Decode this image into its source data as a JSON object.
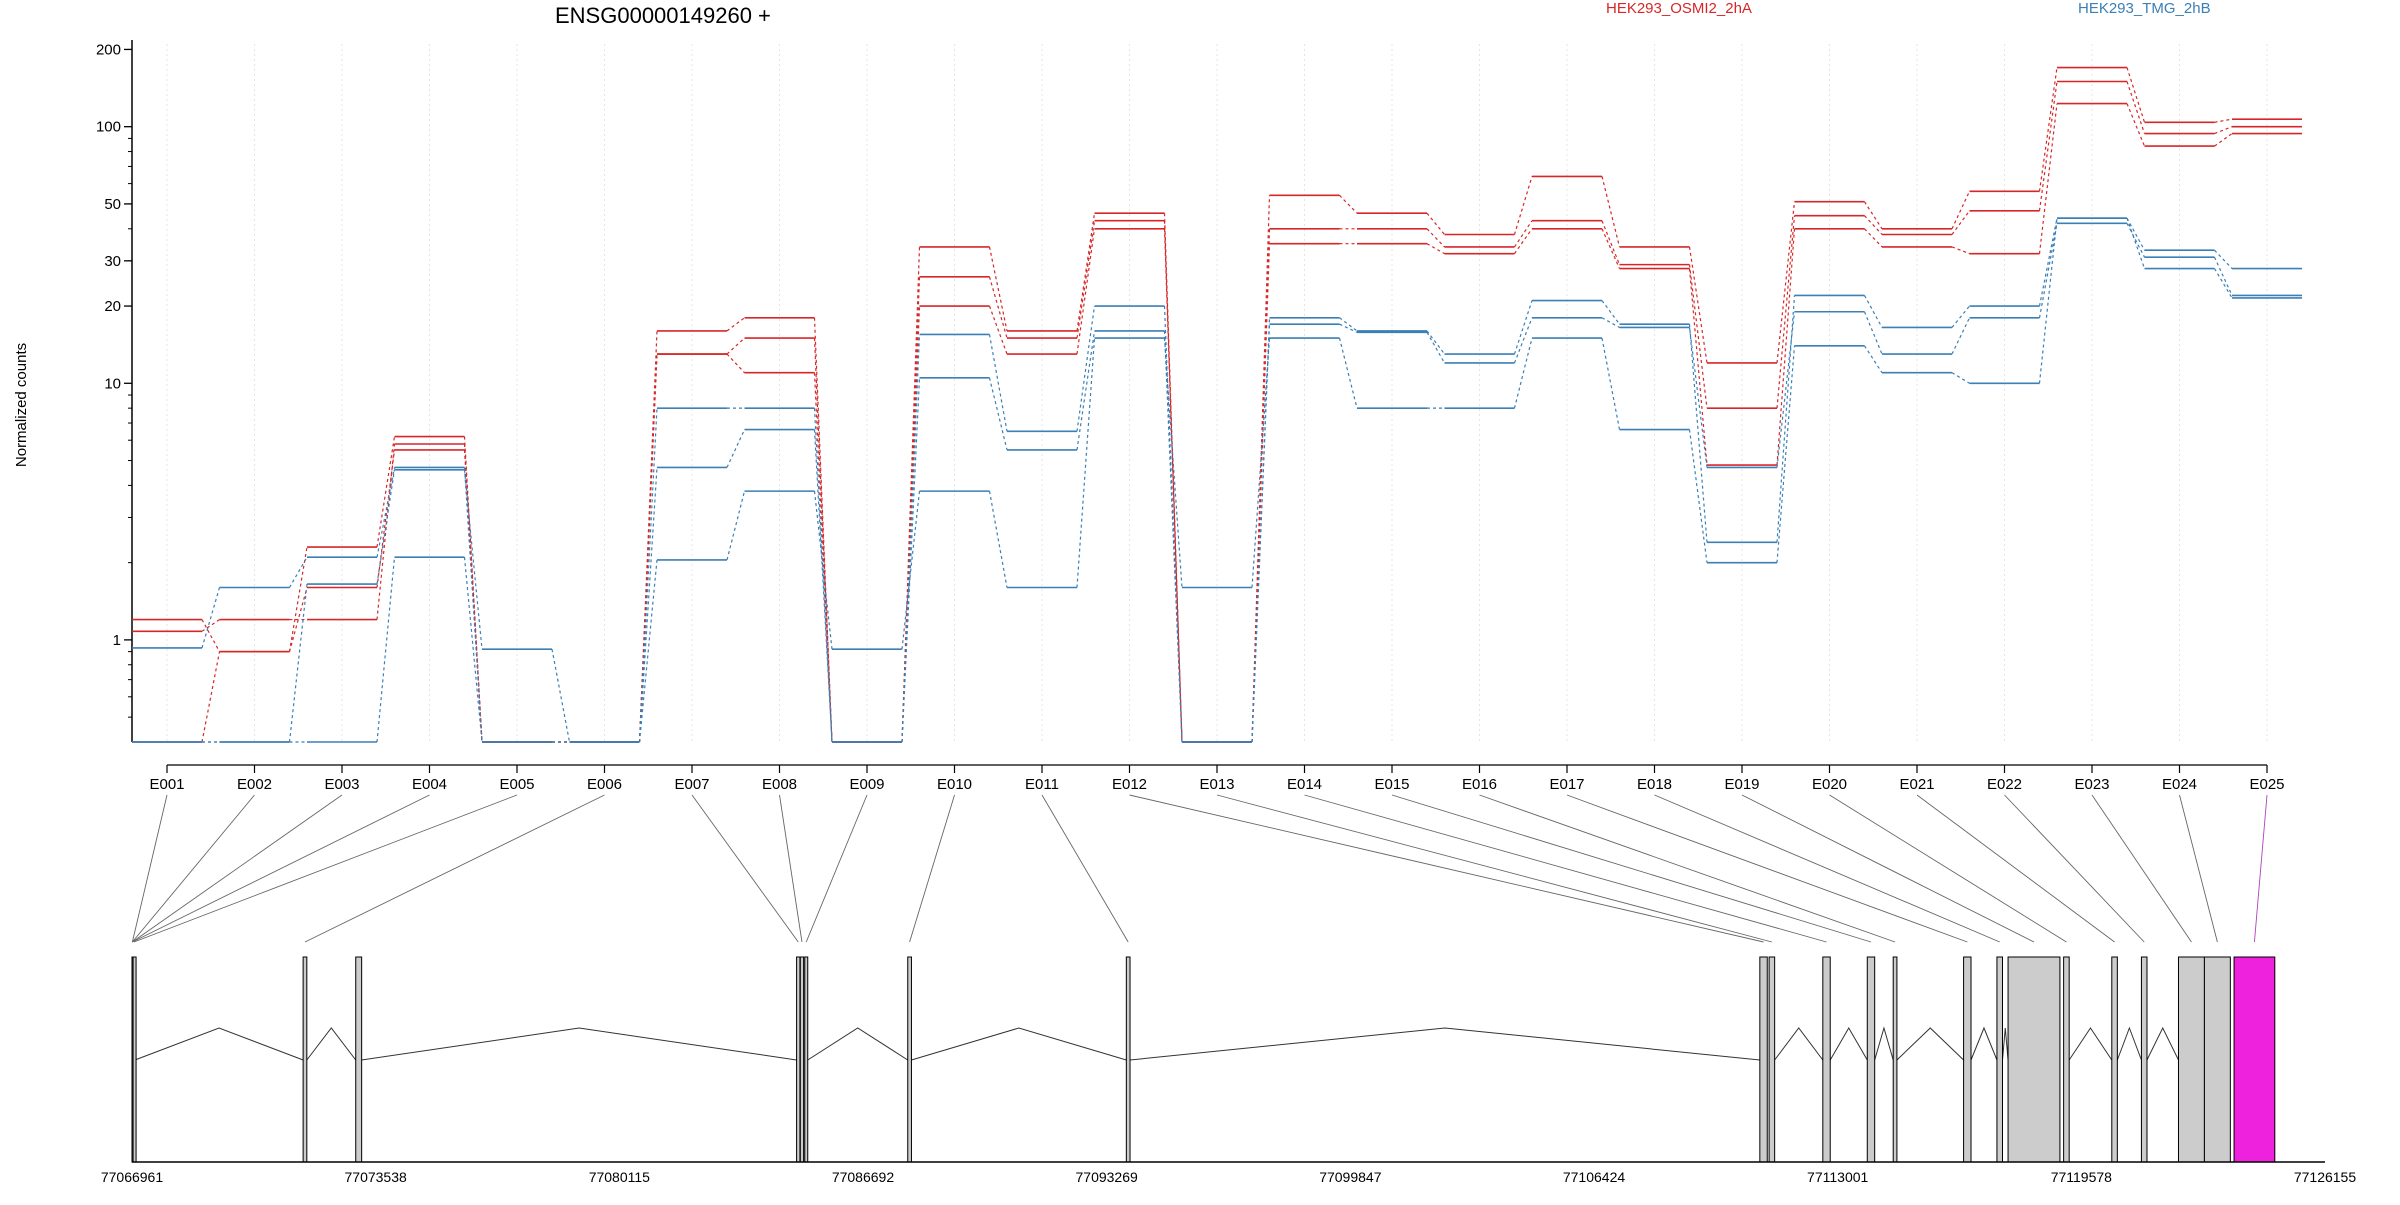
{
  "chart_data": {
    "type": "line",
    "title": "ENSG00000149260 +",
    "ylabel": "Normalized counts",
    "yscale": "log",
    "ylim": [
      0.4,
      210
    ],
    "y_ticks": [
      1,
      10,
      20,
      30,
      50,
      100,
      200
    ],
    "y_tick_labels": [
      "1",
      "10",
      "20",
      "30",
      "50",
      "100",
      "200"
    ],
    "categories": [
      "E001",
      "E002",
      "E003",
      "E004",
      "E005",
      "E006",
      "E007",
      "E008",
      "E009",
      "E010",
      "E011",
      "E012",
      "E013",
      "E014",
      "E015",
      "E016",
      "E017",
      "E018",
      "E019",
      "E020",
      "E021",
      "E022",
      "E023",
      "E024",
      "E025"
    ],
    "legend": [
      {
        "name": "HEK293_OSMI2_2hA",
        "color": "#d62728"
      },
      {
        "name": "HEK293_TMG_2hB",
        "color": "#3a7fb5"
      }
    ],
    "series": [
      {
        "group": 0,
        "values": [
          1.2,
          0.9,
          2.3,
          6.2,
          0.4,
          0.4,
          16,
          18,
          0.4,
          34,
          16,
          46,
          0.4,
          54,
          46,
          38,
          64,
          34,
          12,
          51,
          40,
          56,
          170,
          104,
          107
        ]
      },
      {
        "group": 0,
        "values": [
          1.08,
          1.2,
          1.2,
          5.8,
          0.4,
          0.4,
          13,
          15,
          0.4,
          26,
          15,
          43,
          0.4,
          40,
          40,
          34,
          43,
          29,
          8,
          45,
          38,
          47,
          150,
          94,
          100
        ]
      },
      {
        "group": 0,
        "values": [
          0.4,
          0.9,
          1.6,
          5.5,
          0.4,
          0.4,
          13,
          11,
          0.4,
          20,
          13,
          40,
          0.4,
          35,
          35,
          32,
          40,
          28,
          4.8,
          40,
          34,
          32,
          123,
          84,
          94
        ]
      },
      {
        "group": 1,
        "values": [
          0.93,
          1.6,
          2.1,
          4.7,
          0.4,
          0.4,
          8,
          8,
          0.4,
          15.5,
          6.5,
          20,
          0.4,
          18,
          16,
          13,
          21,
          17,
          2.4,
          22,
          16.5,
          20,
          44,
          33,
          28
        ]
      },
      {
        "group": 1,
        "values": [
          0.4,
          0.4,
          1.65,
          4.6,
          0.92,
          0.4,
          4.7,
          6.6,
          0.4,
          10.5,
          5.5,
          16,
          0.4,
          17,
          15.8,
          12,
          18,
          16.5,
          4.7,
          19,
          13,
          18,
          42,
          31,
          22
        ]
      },
      {
        "group": 1,
        "values": [
          0.4,
          0.4,
          0.4,
          2.1,
          0.4,
          0.4,
          2.05,
          3.8,
          0.92,
          3.8,
          1.6,
          15,
          1.6,
          15,
          8,
          8,
          15,
          6.6,
          2,
          14,
          11,
          10,
          44,
          28,
          21.5
        ]
      }
    ],
    "x_axis_coordinates": [
      "77066961",
      "77073538",
      "77080115",
      "77086692",
      "77093269",
      "77099847",
      "77106424",
      "77113001",
      "77119578",
      "77126155"
    ],
    "gene_model": {
      "range": [
        77066961,
        77126155
      ],
      "exons": [
        [
          77066961,
          77066980
        ],
        [
          77066990,
          77067040
        ],
        [
          77071580,
          77071680
        ],
        [
          77073000,
          77073160
        ],
        [
          77084900,
          77084990
        ],
        [
          77085000,
          77085090
        ],
        [
          77085120,
          77085200
        ],
        [
          77087900,
          77088000
        ],
        [
          77093800,
          77093900
        ],
        [
          77110900,
          77111100
        ],
        [
          77111150,
          77111300
        ],
        [
          77112600,
          77112800
        ],
        [
          77113800,
          77114000
        ],
        [
          77114500,
          77114600
        ],
        [
          77116400,
          77116600
        ],
        [
          77117300,
          77117450
        ],
        [
          77117600,
          77119000
        ],
        [
          77119100,
          77119250
        ],
        [
          77120400,
          77120550
        ],
        [
          77121200,
          77121350
        ],
        [
          77122200,
          77122900
        ],
        [
          77122900,
          77123600
        ]
      ],
      "highlight_exon": [
        77123700,
        77124800
      ],
      "highlight_color": "#ee22dd",
      "exon_fill": "#cccccc"
    }
  }
}
